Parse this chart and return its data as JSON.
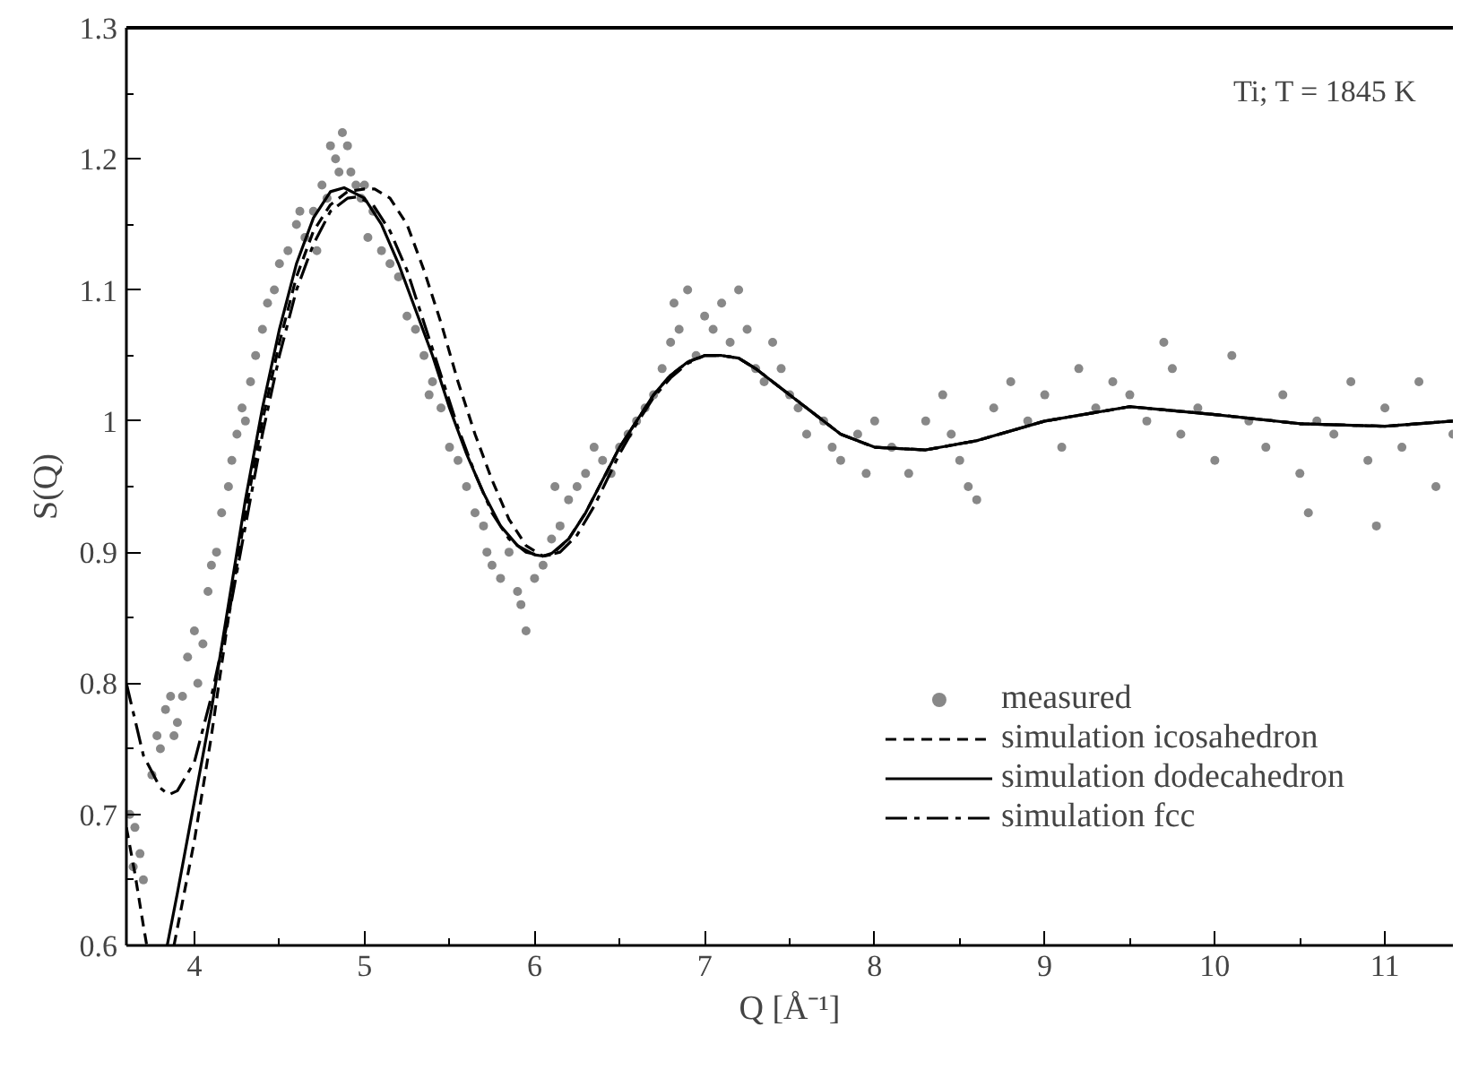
{
  "chart_data": {
    "type": "line",
    "xlabel": "Q [Å⁻¹]",
    "ylabel": "S(Q)",
    "annotations": [
      "Ti; T = 1845 K"
    ],
    "xlim": [
      3.6,
      11.4
    ],
    "ylim": [
      0.6,
      1.3
    ],
    "xticks": [
      4,
      5,
      6,
      7,
      8,
      9,
      10,
      11
    ],
    "yticks": [
      0.6,
      0.7,
      0.8,
      0.9,
      1,
      1.1,
      1.2,
      1.3
    ],
    "grid": false,
    "legend": "bottom right",
    "series": [
      {
        "name": "measured",
        "type": "scatter",
        "marker": "circle",
        "color": "#888888",
        "x": [
          3.62,
          3.65,
          3.68,
          3.7,
          3.64,
          3.75,
          3.78,
          3.8,
          3.83,
          3.86,
          3.88,
          3.9,
          3.93,
          3.96,
          4.0,
          4.02,
          4.05,
          4.08,
          4.1,
          4.13,
          4.16,
          4.2,
          4.22,
          4.25,
          4.28,
          4.3,
          4.33,
          4.36,
          4.4,
          4.43,
          4.47,
          4.5,
          4.55,
          4.6,
          4.62,
          4.65,
          4.7,
          4.72,
          4.75,
          4.78,
          4.8,
          4.83,
          4.85,
          4.87,
          4.9,
          4.92,
          4.95,
          4.98,
          5.0,
          5.02,
          5.05,
          5.1,
          5.15,
          5.2,
          5.25,
          5.3,
          5.35,
          5.38,
          5.4,
          5.45,
          5.5,
          5.55,
          5.6,
          5.65,
          5.7,
          5.72,
          5.75,
          5.8,
          5.85,
          5.9,
          5.92,
          5.95,
          6.0,
          6.05,
          6.1,
          6.12,
          6.15,
          6.2,
          6.25,
          6.3,
          6.35,
          6.4,
          6.45,
          6.5,
          6.55,
          6.6,
          6.65,
          6.7,
          6.75,
          6.8,
          6.82,
          6.85,
          6.9,
          6.95,
          7.0,
          7.05,
          7.1,
          7.15,
          7.2,
          7.25,
          7.3,
          7.35,
          7.4,
          7.45,
          7.5,
          7.55,
          7.6,
          7.7,
          7.75,
          7.8,
          7.9,
          7.95,
          8.0,
          8.1,
          8.2,
          8.3,
          8.4,
          8.45,
          8.5,
          8.55,
          8.6,
          8.7,
          8.8,
          8.9,
          9.0,
          9.1,
          9.2,
          9.3,
          9.4,
          9.5,
          9.6,
          9.7,
          9.75,
          9.8,
          9.9,
          10.0,
          10.1,
          10.2,
          10.3,
          10.4,
          10.5,
          10.55,
          10.6,
          10.7,
          10.8,
          10.9,
          10.95,
          11.0,
          11.1,
          11.2,
          11.3,
          11.4
        ],
        "values": [
          0.7,
          0.69,
          0.67,
          0.65,
          0.66,
          0.73,
          0.76,
          0.75,
          0.78,
          0.79,
          0.76,
          0.77,
          0.79,
          0.82,
          0.84,
          0.8,
          0.83,
          0.87,
          0.89,
          0.9,
          0.93,
          0.95,
          0.97,
          0.99,
          1.01,
          1.0,
          1.03,
          1.05,
          1.07,
          1.09,
          1.1,
          1.12,
          1.13,
          1.15,
          1.16,
          1.14,
          1.16,
          1.13,
          1.18,
          1.17,
          1.21,
          1.2,
          1.19,
          1.22,
          1.21,
          1.19,
          1.18,
          1.17,
          1.18,
          1.14,
          1.16,
          1.13,
          1.12,
          1.11,
          1.08,
          1.07,
          1.05,
          1.02,
          1.03,
          1.01,
          0.98,
          0.97,
          0.95,
          0.93,
          0.92,
          0.9,
          0.89,
          0.88,
          0.9,
          0.87,
          0.86,
          0.84,
          0.88,
          0.89,
          0.91,
          0.95,
          0.92,
          0.94,
          0.95,
          0.96,
          0.98,
          0.97,
          0.96,
          0.98,
          0.99,
          1.0,
          1.01,
          1.02,
          1.04,
          1.06,
          1.09,
          1.07,
          1.1,
          1.05,
          1.08,
          1.07,
          1.09,
          1.06,
          1.1,
          1.07,
          1.04,
          1.03,
          1.06,
          1.04,
          1.02,
          1.01,
          0.99,
          1.0,
          0.98,
          0.97,
          0.99,
          0.96,
          1.0,
          0.98,
          0.96,
          1.0,
          1.02,
          0.99,
          0.97,
          0.95,
          0.94,
          1.01,
          1.03,
          1.0,
          1.02,
          0.98,
          1.04,
          1.01,
          1.03,
          1.02,
          1.0,
          1.06,
          1.04,
          0.99,
          1.01,
          0.97,
          1.05,
          1.0,
          0.98,
          1.02,
          0.96,
          0.93,
          1.0,
          0.99,
          1.03,
          0.97,
          0.92,
          1.01,
          0.98,
          1.03,
          0.95,
          0.99
        ]
      },
      {
        "line_style": "dashed",
        "color": "#000000",
        "x": [
          3.6,
          3.65,
          3.7,
          3.72
        ],
        "values": [
          0.69,
          0.655,
          0.615,
          0.6
        ]
      },
      {
        "name": "simulation icosahedron",
        "line_style": "dashed",
        "color": "#000000",
        "x": [
          3.88,
          4.0,
          4.1,
          4.2,
          4.3,
          4.4,
          4.5,
          4.6,
          4.7,
          4.8,
          4.9,
          5.0,
          5.06,
          5.15,
          5.25,
          5.35,
          5.45,
          5.55,
          5.65,
          5.75,
          5.85,
          5.95,
          6.05,
          6.1,
          6.2,
          6.3,
          6.4,
          6.5,
          6.6,
          6.7,
          6.8,
          6.9,
          7.0,
          7.1,
          7.2,
          7.3,
          7.4,
          7.6,
          7.8,
          8.0,
          8.3,
          8.6,
          9.0,
          9.5,
          10.0,
          10.5,
          11.0,
          11.4
        ],
        "values": [
          0.6,
          0.68,
          0.76,
          0.85,
          0.93,
          1.0,
          1.06,
          1.11,
          1.145,
          1.165,
          1.175,
          1.177,
          1.177,
          1.17,
          1.15,
          1.115,
          1.075,
          1.03,
          0.99,
          0.955,
          0.925,
          0.905,
          0.897,
          0.898,
          0.91,
          0.93,
          0.955,
          0.98,
          1.0,
          1.02,
          1.035,
          1.045,
          1.05,
          1.05,
          1.048,
          1.04,
          1.03,
          1.01,
          0.99,
          0.98,
          0.978,
          0.985,
          1.0,
          1.011,
          1.005,
          0.998,
          0.996,
          1.0
        ]
      },
      {
        "name": "simulation dodecahedron",
        "line_style": "solid",
        "color": "#000000",
        "x": [
          3.84,
          3.9,
          4.0,
          4.1,
          4.2,
          4.3,
          4.4,
          4.5,
          4.6,
          4.7,
          4.8,
          4.88,
          5.0,
          5.1,
          5.2,
          5.3,
          5.4,
          5.5,
          5.6,
          5.7,
          5.8,
          5.9,
          6.0,
          6.05,
          6.1,
          6.2,
          6.3,
          6.4,
          6.5,
          6.6,
          6.7,
          6.8,
          6.9,
          7.0,
          7.1,
          7.2,
          7.3,
          7.4,
          7.6,
          7.8,
          8.0,
          8.3,
          8.6,
          9.0,
          9.5,
          10.0,
          10.5,
          11.0,
          11.4
        ],
        "values": [
          0.6,
          0.64,
          0.71,
          0.78,
          0.86,
          0.94,
          1.01,
          1.07,
          1.12,
          1.155,
          1.175,
          1.178,
          1.17,
          1.15,
          1.12,
          1.085,
          1.05,
          1.01,
          0.975,
          0.945,
          0.92,
          0.905,
          0.898,
          0.897,
          0.899,
          0.91,
          0.93,
          0.955,
          0.98,
          1.0,
          1.02,
          1.035,
          1.045,
          1.05,
          1.05,
          1.048,
          1.04,
          1.03,
          1.01,
          0.99,
          0.98,
          0.978,
          0.985,
          1.0,
          1.011,
          1.005,
          0.998,
          0.996,
          1.0
        ]
      },
      {
        "name": "simulation fcc",
        "line_style": "dashdot",
        "color": "#000000",
        "x": [
          3.6,
          3.7,
          3.8,
          3.85,
          3.9,
          4.0,
          4.1,
          4.2,
          4.3,
          4.4,
          4.5,
          4.6,
          4.7,
          4.8,
          4.9,
          4.96,
          5.05,
          5.15,
          5.25,
          5.35,
          5.45,
          5.55,
          5.65,
          5.75,
          5.85,
          5.95,
          6.05,
          6.15,
          6.25,
          6.35,
          6.5,
          6.6,
          6.7,
          6.8,
          6.9,
          7.0,
          7.1,
          7.2,
          7.3,
          7.4,
          7.6,
          7.8,
          8.0,
          8.3,
          8.6,
          9.0,
          9.5,
          10.0,
          10.5,
          11.0,
          11.4
        ],
        "values": [
          0.8,
          0.745,
          0.72,
          0.715,
          0.718,
          0.74,
          0.79,
          0.85,
          0.92,
          0.99,
          1.05,
          1.1,
          1.135,
          1.16,
          1.17,
          1.171,
          1.165,
          1.145,
          1.115,
          1.075,
          1.035,
          0.995,
          0.96,
          0.93,
          0.91,
          0.9,
          0.897,
          0.9,
          0.913,
          0.935,
          0.975,
          0.998,
          1.018,
          1.033,
          1.044,
          1.05,
          1.05,
          1.048,
          1.04,
          1.03,
          1.01,
          0.99,
          0.98,
          0.978,
          0.985,
          1.0,
          1.011,
          1.005,
          0.998,
          0.996,
          1.0
        ]
      }
    ]
  }
}
